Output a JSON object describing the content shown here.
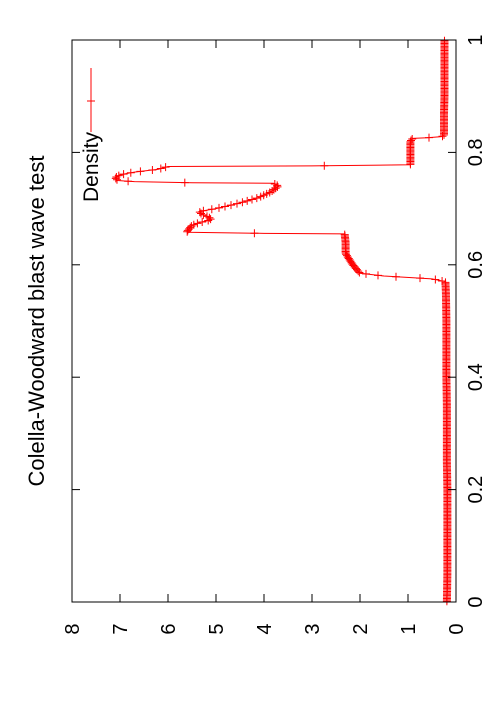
{
  "chart_data": {
    "type": "line",
    "title": "Colella-Woodward blast wave test",
    "xlabel": "",
    "ylabel": "",
    "xlim": [
      0,
      1
    ],
    "ylim": [
      0,
      8
    ],
    "x_ticks": [
      "0",
      "0.2",
      "0.4",
      "0.6",
      "0.8",
      "1"
    ],
    "y_ticks": [
      "0",
      "1",
      "2",
      "3",
      "4",
      "5",
      "6",
      "7",
      "8"
    ],
    "grid": false,
    "orientation": "rotated-90-clockwise",
    "legend": {
      "placement": "top-right",
      "entries": [
        {
          "label": "Density",
          "color": "#ff0000",
          "marker": "plus"
        }
      ]
    },
    "series": [
      {
        "name": "Density",
        "color": "#ff0000",
        "x": [
          0.0,
          0.05,
          0.1,
          0.15,
          0.2,
          0.25,
          0.3,
          0.35,
          0.4,
          0.45,
          0.5,
          0.55,
          0.57,
          0.575,
          0.58,
          0.585,
          0.6,
          0.62,
          0.64,
          0.655,
          0.656,
          0.658,
          0.66,
          0.665,
          0.67,
          0.675,
          0.68,
          0.685,
          0.69,
          0.695,
          0.7,
          0.71,
          0.72,
          0.73,
          0.74,
          0.745,
          0.746,
          0.748,
          0.75,
          0.755,
          0.76,
          0.765,
          0.77,
          0.775,
          0.776,
          0.778,
          0.8,
          0.81,
          0.82,
          0.825,
          0.826,
          0.828,
          0.83,
          0.85,
          0.87,
          0.9,
          0.93,
          0.96,
          1.0
        ],
        "y": [
          0.19,
          0.18,
          0.18,
          0.18,
          0.18,
          0.19,
          0.19,
          0.19,
          0.2,
          0.2,
          0.2,
          0.21,
          0.22,
          0.5,
          1.5,
          2.0,
          2.15,
          2.3,
          2.3,
          2.32,
          4.0,
          5.6,
          5.6,
          5.55,
          5.5,
          5.35,
          5.1,
          5.15,
          5.3,
          5.35,
          5.0,
          4.5,
          4.1,
          3.85,
          3.7,
          3.8,
          5.5,
          6.7,
          7.05,
          7.1,
          7.0,
          6.7,
          6.2,
          6.0,
          3.0,
          0.95,
          0.95,
          0.95,
          0.95,
          0.9,
          0.6,
          0.3,
          0.25,
          0.25,
          0.25,
          0.24,
          0.24,
          0.24,
          0.24
        ]
      }
    ]
  }
}
